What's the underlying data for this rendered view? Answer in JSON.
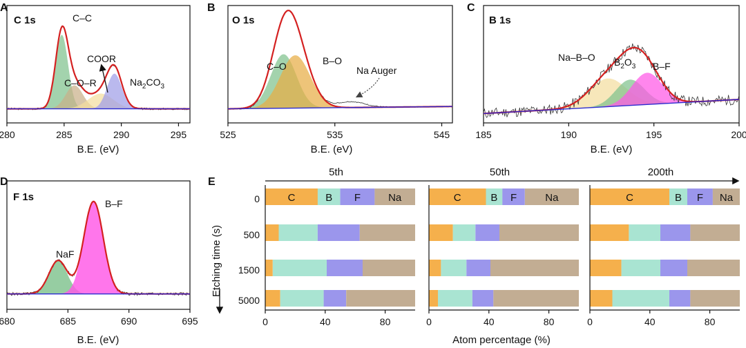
{
  "colors": {
    "fit": "#d42020",
    "raw": "#333333",
    "baseline": "#2a2ad0",
    "green": "#7fc28e",
    "tan": "#c9b089",
    "purple": "#9f9ee8",
    "cream": "#f4dea0",
    "orange": "#e8ad45",
    "pink": "#ff58e6",
    "C": "#f5b04c",
    "B": "#a9e4d2",
    "F": "#9b96ec",
    "Na": "#c2ad93"
  },
  "chart_data": [
    {
      "panel": "A",
      "type": "line",
      "title": "C 1s",
      "xlabel": "B.E. (eV)",
      "xlim": [
        280,
        296
      ],
      "xticks": [
        280,
        285,
        290,
        295
      ],
      "peaks": [
        {
          "name": "C–C",
          "center": 284.8,
          "height": 0.63,
          "width": 0.55,
          "color": "green"
        },
        {
          "name": "C–O–R",
          "center": 285.9,
          "height": 0.2,
          "width": 0.75,
          "color": "tan"
        },
        {
          "name": "COOR",
          "center": 288.2,
          "height": 0.13,
          "width": 1.1,
          "color": "cream"
        },
        {
          "name": "Na2CO3",
          "center": 289.4,
          "height": 0.3,
          "width": 0.65,
          "color": "purple"
        }
      ],
      "labels": {
        "cc": "C–C",
        "cor": "C–O–R",
        "coor": "COOR",
        "na2co3": "Na",
        "na2co3_s1": "2",
        "na2co3_m": "CO",
        "na2co3_s2": "3"
      }
    },
    {
      "panel": "B",
      "type": "line",
      "title": "O 1s",
      "xlabel": "B.E. (eV)",
      "xlim": [
        525,
        546
      ],
      "xticks": [
        525,
        535,
        545
      ],
      "peaks": [
        {
          "name": "C–O",
          "center": 530.2,
          "height": 0.46,
          "width": 1.2,
          "color": "green"
        },
        {
          "name": "B–O",
          "center": 531.3,
          "height": 0.45,
          "width": 1.4,
          "color": "orange"
        }
      ],
      "labels": {
        "co": "C–O",
        "bo": "B–O",
        "auger": "Na Auger"
      }
    },
    {
      "panel": "C",
      "type": "line",
      "title": "B 1s",
      "xlabel": "B.E. (eV)",
      "xlim": [
        185,
        200
      ],
      "xticks": [
        185,
        190,
        195,
        200
      ],
      "peaks": [
        {
          "name": "Na–B–O",
          "center": 192.3,
          "height": 0.24,
          "width": 1.1,
          "color": "cream"
        },
        {
          "name": "B2O3",
          "center": 193.6,
          "height": 0.22,
          "width": 0.85,
          "color": "green"
        },
        {
          "name": "B–F",
          "center": 194.6,
          "height": 0.27,
          "width": 0.9,
          "color": "pink"
        }
      ],
      "labels": {
        "nabo": "Na–B–O",
        "b2o3": "B",
        "b2o3_s1": "2",
        "b2o3_m": "O",
        "b2o3_s2": "3",
        "bf": "B–F"
      }
    },
    {
      "panel": "D",
      "type": "line",
      "title": "F 1s",
      "xlabel": "B.E. (eV)",
      "xlim": [
        680,
        695
      ],
      "xticks": [
        680,
        685,
        690,
        695
      ],
      "peaks": [
        {
          "name": "NaF",
          "center": 684.2,
          "height": 0.26,
          "width": 0.75,
          "color": "green"
        },
        {
          "name": "B–F",
          "center": 687.1,
          "height": 0.72,
          "width": 0.8,
          "color": "pink"
        }
      ],
      "labels": {
        "naf": "NaF",
        "bf": "B–F"
      }
    },
    {
      "panel": "E",
      "type": "bar",
      "orientation": "horizontal",
      "stacked": true,
      "ylabel": "Etching time (s)",
      "xlabel": "Atom percentage (%)",
      "xlim": [
        0,
        100
      ],
      "xticks": [
        0,
        40,
        80
      ],
      "etch_times": [
        "0",
        "500",
        "1500",
        "5000"
      ],
      "components": [
        "C",
        "B",
        "F",
        "Na"
      ],
      "cycles": [
        {
          "name": "5th",
          "data": [
            [
              35,
              15,
              23,
              27
            ],
            [
              9,
              26,
              28,
              37
            ],
            [
              5,
              36,
              24,
              35
            ],
            [
              10,
              29,
              15,
              46
            ]
          ]
        },
        {
          "name": "50th",
          "data": [
            [
              38,
              11,
              15,
              36
            ],
            [
              16,
              15,
              16,
              53
            ],
            [
              8,
              17,
              16,
              59
            ],
            [
              6,
              23,
              14,
              57
            ]
          ]
        },
        {
          "name": "200th",
          "data": [
            [
              53,
              12,
              17,
              18
            ],
            [
              26,
              21,
              20,
              33
            ],
            [
              21,
              26,
              18,
              35
            ],
            [
              15,
              38,
              14,
              33
            ]
          ]
        }
      ]
    }
  ]
}
